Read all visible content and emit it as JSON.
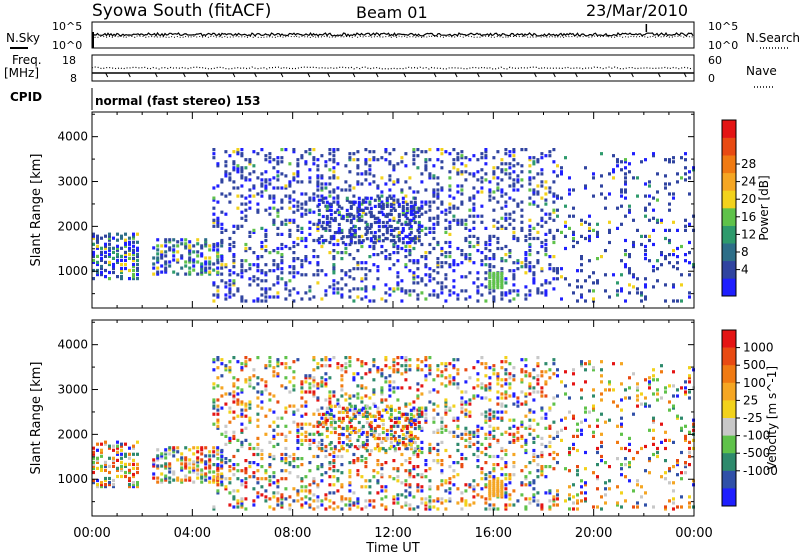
{
  "header": {
    "station": "Syowa South (fitACF)",
    "beam": "Beam 01",
    "date": "23/Mar/2010"
  },
  "strips": {
    "nsky_label": "N.Sky",
    "nsky_ticks": [
      "10^5",
      "10^0"
    ],
    "nsearch_label": "N.Search",
    "nsearch_ticks": [
      "10^5",
      "10^0"
    ],
    "freq_label_1": "Freq.",
    "freq_label_2": "[MHz]",
    "freq_ticks": [
      "18",
      "8"
    ],
    "nave_label": "Nave",
    "nave_ticks": [
      "60",
      "0"
    ],
    "cpid_label": "CPID",
    "cpid_text": "normal (fast stereo) 153"
  },
  "x_axis": {
    "title": "Time UT",
    "ticks": [
      "00:00",
      "04:00",
      "08:00",
      "12:00",
      "16:00",
      "20:00",
      "00:00"
    ]
  },
  "chart_data": [
    {
      "type": "heatmap",
      "quantity": "Power",
      "ylabel": "Slant Range [km]",
      "xlabel": "Time UT",
      "yticks": [
        1000,
        2000,
        3000,
        4000
      ],
      "ylim": [
        180,
        4550
      ],
      "xlim_hours": [
        0,
        24
      ],
      "colorbar_label": "Power [dB]",
      "colorbar_ticks": [
        "4",
        "8",
        "12",
        "16",
        "20",
        "24",
        "28"
      ],
      "colorbar_colors": [
        "#1f1fff",
        "#3044a0",
        "#2d6e88",
        "#2e9a6c",
        "#5fc24a",
        "#f2d21c",
        "#f5a623",
        "#f07a12",
        "#e84a12",
        "#e41414"
      ],
      "regions": [
        {
          "t": [
            0.0,
            1.8
          ],
          "r": [
            800,
            1800
          ],
          "d": 0.45,
          "p": [
            0.55,
            0.3,
            0.15
          ]
        },
        {
          "t": [
            2.4,
            5.2
          ],
          "r": [
            900,
            1700
          ],
          "d": 0.45,
          "p": [
            0.5,
            0.3,
            0.2
          ]
        },
        {
          "t": [
            4.8,
            18.5
          ],
          "r": [
            300,
            3700
          ],
          "d": 0.22,
          "p": [
            0.0,
            0.15,
            0.85
          ]
        },
        {
          "t": [
            9.0,
            13.0
          ],
          "r": [
            1600,
            2600
          ],
          "d": 0.35,
          "p": [
            0.0,
            0.1,
            0.9
          ]
        },
        {
          "t": [
            15.8,
            16.3
          ],
          "r": [
            600,
            950
          ],
          "d": 0.95,
          "p": [
            1.0,
            0.0,
            0.0
          ]
        },
        {
          "t": [
            18.5,
            24.0
          ],
          "r": [
            300,
            3600
          ],
          "d": 0.12,
          "p": [
            0.0,
            0.15,
            0.85
          ]
        }
      ]
    },
    {
      "type": "heatmap",
      "quantity": "Velocity",
      "ylabel": "Slant Range [km]",
      "xlabel": "Time UT",
      "yticks": [
        1000,
        2000,
        3000,
        4000
      ],
      "ylim": [
        180,
        4550
      ],
      "xlim_hours": [
        0,
        24
      ],
      "colorbar_label": "Velocity [m s^-1]",
      "colorbar_ticks": [
        "1000",
        "500",
        "100",
        "25",
        "-25",
        "-100",
        "-500",
        "-1000"
      ],
      "colorbar_colors": [
        "#1f1fff",
        "#3050a8",
        "#2e8a6c",
        "#5fc24a",
        "#c8c8c8",
        "#f2d21c",
        "#f5a623",
        "#f07a12",
        "#e84a12",
        "#e41414"
      ],
      "regions": [
        {
          "t": [
            0.0,
            1.8
          ],
          "r": [
            800,
            1800
          ],
          "d": 0.45,
          "p": [
            0.3,
            0.3,
            0.4
          ]
        },
        {
          "t": [
            2.4,
            5.2
          ],
          "r": [
            900,
            1700
          ],
          "d": 0.45,
          "p": [
            0.3,
            0.3,
            0.4
          ]
        },
        {
          "t": [
            4.8,
            18.5
          ],
          "r": [
            300,
            3700
          ],
          "d": 0.22,
          "p": [
            0.3,
            0.3,
            0.4
          ]
        },
        {
          "t": [
            9.0,
            13.0
          ],
          "r": [
            1600,
            2600
          ],
          "d": 0.35,
          "p": [
            0.3,
            0.3,
            0.4
          ]
        },
        {
          "t": [
            15.8,
            16.3
          ],
          "r": [
            600,
            950
          ],
          "d": 0.95,
          "p": [
            0.0,
            1.0,
            0.0
          ]
        },
        {
          "t": [
            18.5,
            24.0
          ],
          "r": [
            300,
            3600
          ],
          "d": 0.12,
          "p": [
            0.3,
            0.3,
            0.4
          ]
        }
      ]
    }
  ]
}
